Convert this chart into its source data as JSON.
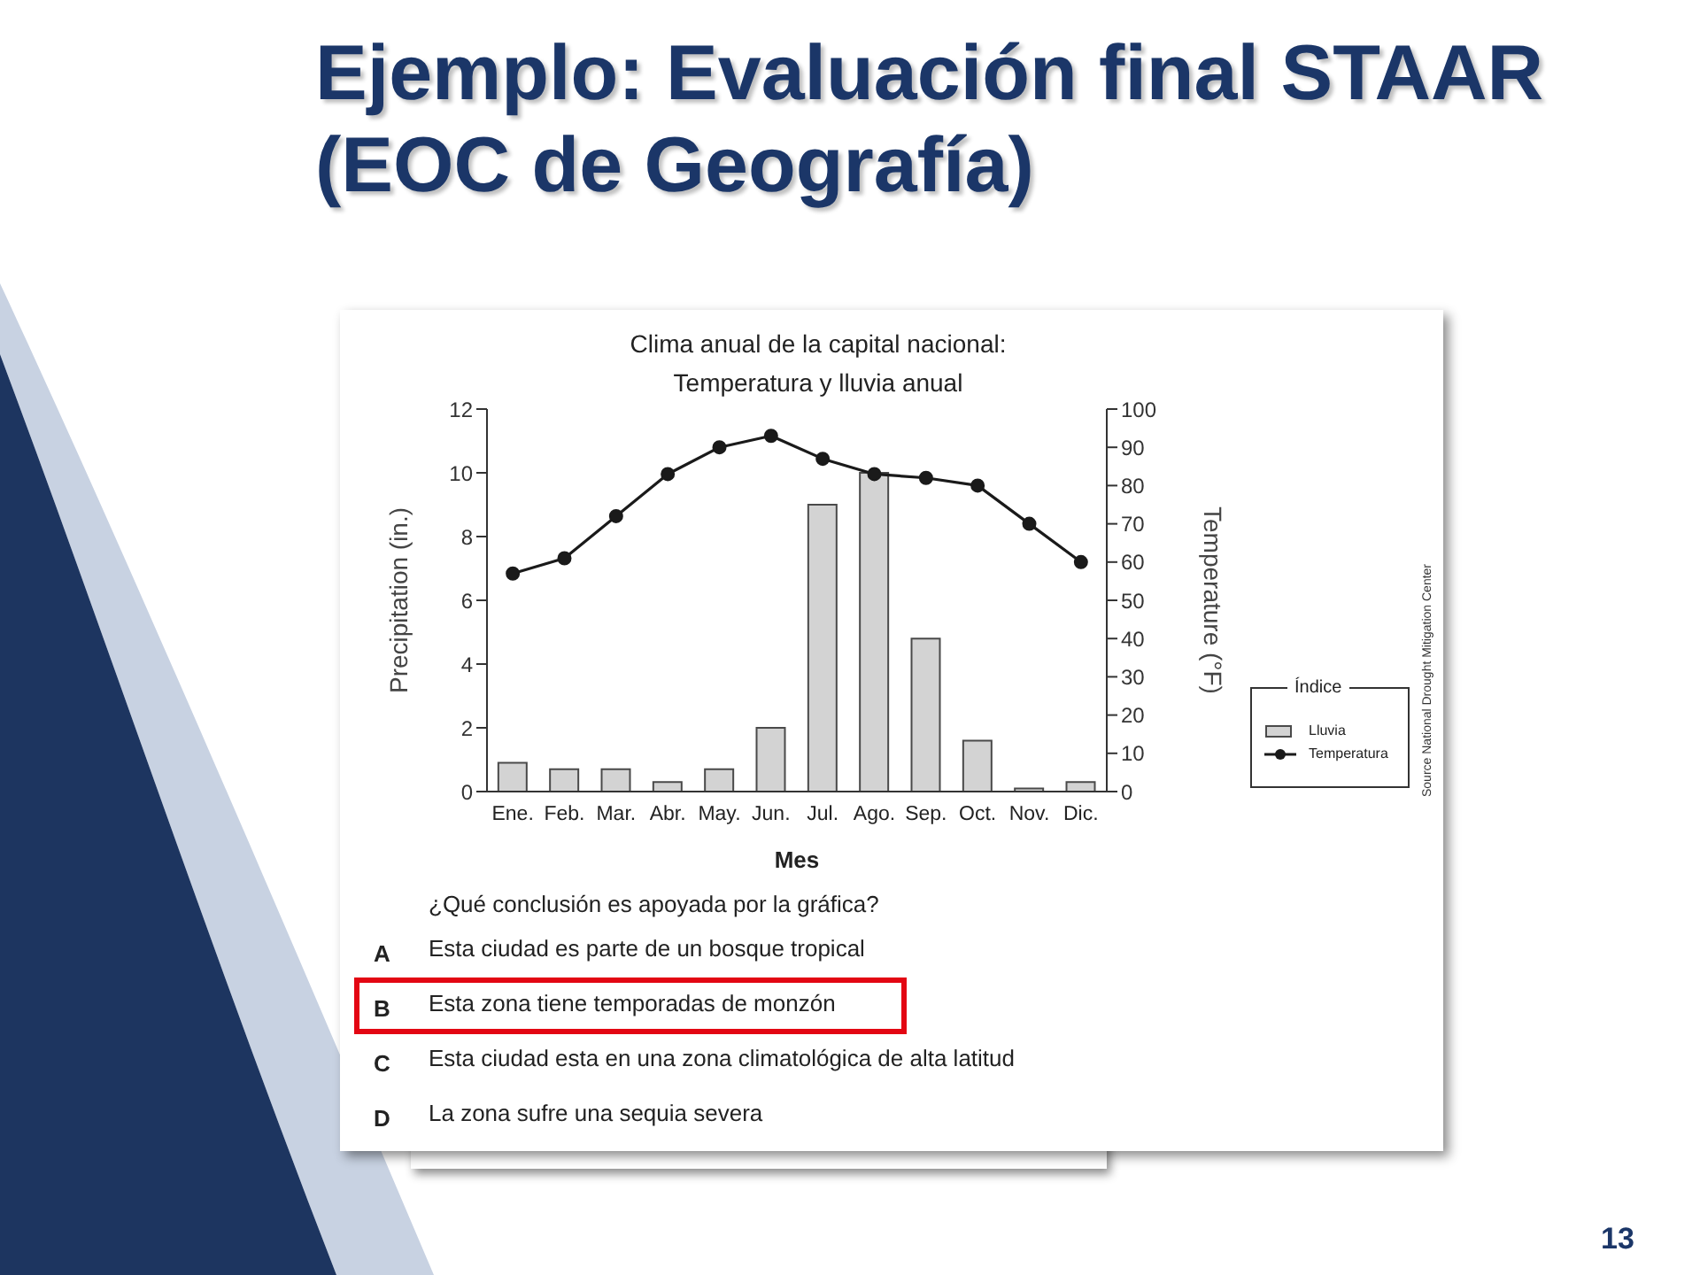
{
  "chart_data": {
    "type": "bar",
    "title": "Ejemplo: Evaluación final STAAR (EOC de Geografía)",
    "subtitle": "Clima anual de la capital nacional: Temperatura y lluvia anual",
    "xlabel": "Mes",
    "ylabel": "Precipitation (in.)",
    "y2label": "Temperature (°F)",
    "legend_title": "Índice",
    "categories": [
      "Ene.",
      "Feb.",
      "Mar.",
      "Abr.",
      "May.",
      "Jun.",
      "Jul.",
      "Ago.",
      "Sep.",
      "Oct.",
      "Nov.",
      "Dic."
    ],
    "series": [
      {
        "name": "Lluvia",
        "color": "#d3d3d3",
        "values": [
          0.9,
          0.7,
          0.7,
          0.3,
          0.7,
          2.0,
          9.0,
          10.0,
          4.8,
          1.6,
          0.1,
          0.3
        ]
      },
      {
        "name": "Temperatura",
        "type": "line",
        "axis": "y2",
        "color": "#1a1a1a",
        "values": [
          57,
          61,
          72,
          83,
          90,
          93,
          87,
          83,
          82,
          80,
          70,
          60
        ]
      }
    ],
    "ylim": [
      0,
      12
    ],
    "yticks": [
      0,
      2,
      4,
      6,
      8,
      10,
      12
    ],
    "y2lim": [
      0,
      100
    ],
    "y2ticks": [
      0,
      10,
      20,
      30,
      40,
      50,
      60,
      70,
      80,
      90,
      100
    ],
    "legend": "right",
    "marker": "circle",
    "line_style": "solid",
    "annotations": [
      "Source National Drought Mitigation Center",
      "¿Qué conclusión es apoyada por la gráfica?",
      "A Esta ciudad es parte de un bosque tropical",
      "B Esta zona tiene temporadas de monzón",
      "C Esta ciudad esta en una zona climatológica de alta latitud",
      "D La zona sufre una sequia severa",
      "13"
    ]
  }
}
